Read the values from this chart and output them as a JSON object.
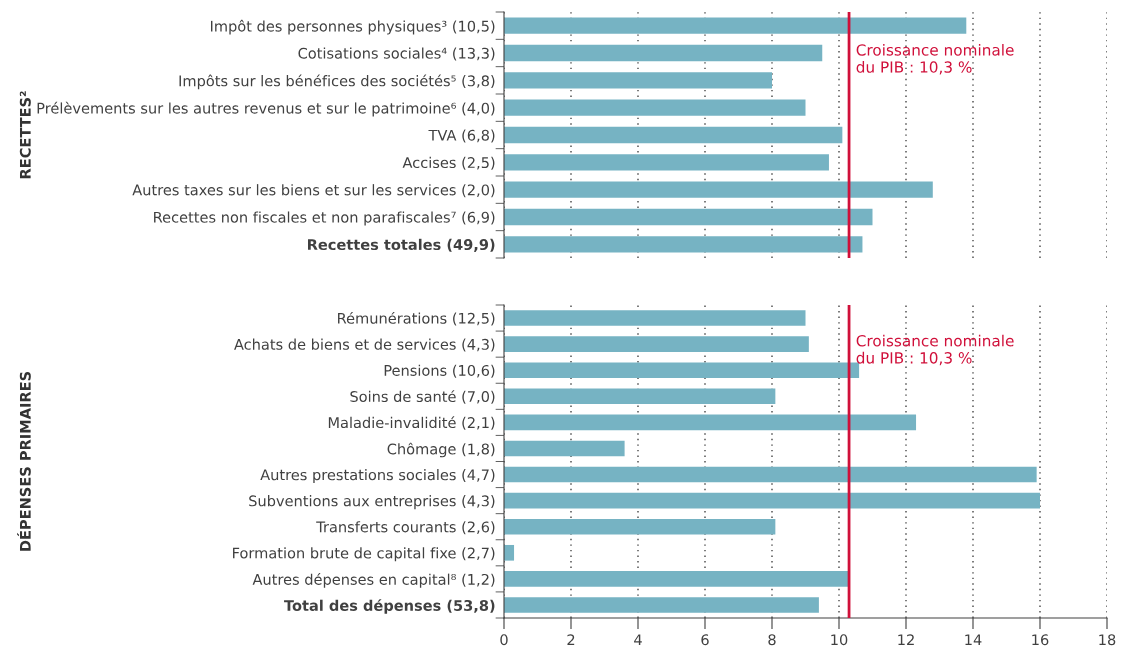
{
  "chart_data": [
    {
      "type": "bar",
      "orientation": "horizontal",
      "ylabel": "RECETTES²",
      "categories": [
        "Impôt des personnes physiques³ (10,5)",
        "Cotisations sociales⁴ (13,3)",
        "Impôts sur les bénéfices des sociétés⁵ (3,8)",
        "Prélèvements sur les autres revenus et sur le patrimoine⁶ (4,0)",
        "TVA (6,8)",
        "Accises (2,5)",
        "Autres taxes sur les biens et sur les services (2,0)",
        "Recettes non fiscales et non parafiscales⁷ (6,9)",
        "Recettes totales (49,9)"
      ],
      "values": [
        13.8,
        9.5,
        8.0,
        9.0,
        10.1,
        9.7,
        12.8,
        11.0,
        10.7
      ],
      "color": "#76b3c3",
      "xlim": [
        0,
        18
      ],
      "xticks": [
        0,
        2,
        4,
        6,
        8,
        10,
        12,
        14,
        16,
        18
      ],
      "tick_labels": "y",
      "grid": "x",
      "ref_lines": [
        {
          "axis": "x",
          "value": 10.3,
          "label": "Croissance nominale\ndu PIB : 10,3 %",
          "color": "#d0103a"
        }
      ]
    },
    {
      "type": "bar",
      "orientation": "horizontal",
      "ylabel": "DÉPENSES PRIMAIRES",
      "categories": [
        "Rémunérations (12,5)",
        "Achats de biens et de services (4,3)",
        "Pensions (10,6)",
        "Soins de santé (7,0)",
        "Maladie-invalidité (2,1)",
        "Chômage (1,8)",
        "Autres prestations sociales (4,7)",
        "Subventions aux entreprises (4,3)",
        "Transferts courants (2,6)",
        "Formation brute de capital fixe (2,7)",
        "Autres dépenses en capital⁸ (1,2)",
        "Total des dépenses (53,8)"
      ],
      "values": [
        9.0,
        9.1,
        10.6,
        8.1,
        12.3,
        3.6,
        15.9,
        16.0,
        8.1,
        0.3,
        10.3,
        9.4
      ],
      "color": "#76b3c3",
      "xlim": [
        0,
        18
      ],
      "xticks": [
        0,
        2,
        4,
        6,
        8,
        10,
        12,
        14,
        16,
        18
      ],
      "grid": "x",
      "ref_lines": [
        {
          "axis": "x",
          "value": 10.3,
          "label": "Croissance nominale\ndu PIB : 10,3 %",
          "color": "#d0103a"
        }
      ]
    }
  ]
}
